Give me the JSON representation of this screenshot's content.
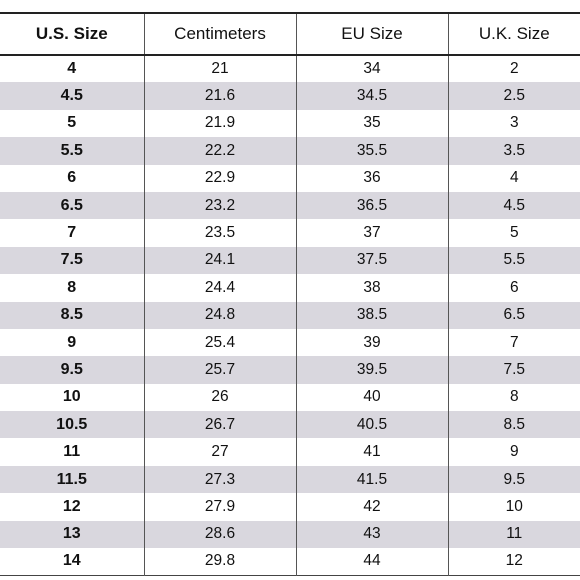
{
  "table": {
    "headers": [
      "U.S. Size",
      "Centimeters",
      "EU Size",
      "U.K. Size"
    ],
    "rows": [
      [
        "4",
        "21",
        "34",
        "2"
      ],
      [
        "4.5",
        "21.6",
        "34.5",
        "2.5"
      ],
      [
        "5",
        "21.9",
        "35",
        "3"
      ],
      [
        "5.5",
        "22.2",
        "35.5",
        "3.5"
      ],
      [
        "6",
        "22.9",
        "36",
        "4"
      ],
      [
        "6.5",
        "23.2",
        "36.5",
        "4.5"
      ],
      [
        "7",
        "23.5",
        "37",
        "5"
      ],
      [
        "7.5",
        "24.1",
        "37.5",
        "5.5"
      ],
      [
        "8",
        "24.4",
        "38",
        "6"
      ],
      [
        "8.5",
        "24.8",
        "38.5",
        "6.5"
      ],
      [
        "9",
        "25.4",
        "39",
        "7"
      ],
      [
        "9.5",
        "25.7",
        "39.5",
        "7.5"
      ],
      [
        "10",
        "26",
        "40",
        "8"
      ],
      [
        "10.5",
        "26.7",
        "40.5",
        "8.5"
      ],
      [
        "11",
        "27",
        "41",
        "9"
      ],
      [
        "11.5",
        "27.3",
        "41.5",
        "9.5"
      ],
      [
        "12",
        "27.9",
        "42",
        "10"
      ],
      [
        "13",
        "28.6",
        "43",
        "11"
      ],
      [
        "14",
        "29.8",
        "44",
        "12"
      ]
    ]
  },
  "colors": {
    "shaded_row": "#d9d7de",
    "rule": "#222222"
  }
}
